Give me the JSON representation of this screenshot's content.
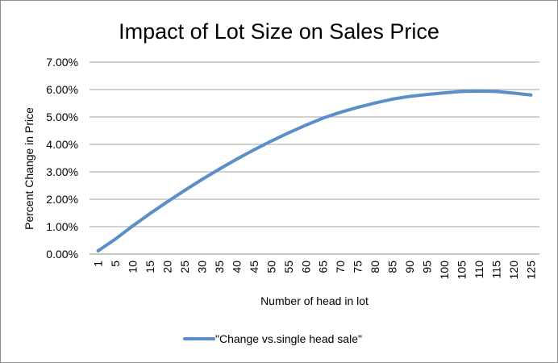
{
  "chart_data": {
    "type": "line",
    "title": "Impact of Lot Size on Sales Price",
    "xlabel": "Number of head in lot",
    "ylabel": "Percent Change in Price",
    "ylim": [
      0,
      0.07
    ],
    "y_ticks": [
      "0.00%",
      "1.00%",
      "2.00%",
      "3.00%",
      "4.00%",
      "5.00%",
      "6.00%",
      "7.00%"
    ],
    "categories": [
      "1",
      "5",
      "10",
      "15",
      "20",
      "25",
      "30",
      "35",
      "40",
      "45",
      "50",
      "55",
      "60",
      "65",
      "70",
      "75",
      "80",
      "85",
      "90",
      "95",
      "100",
      "105",
      "110",
      "115",
      "120",
      "125"
    ],
    "grid": true,
    "legend_position": "bottom",
    "series": [
      {
        "name": "\"Change vs.single head sale\"",
        "color": "#5b8fc9",
        "values": [
          0.0012,
          0.0055,
          0.0103,
          0.0148,
          0.0191,
          0.0232,
          0.0272,
          0.031,
          0.0346,
          0.038,
          0.0412,
          0.0442,
          0.047,
          0.0496,
          0.0517,
          0.0535,
          0.0551,
          0.0565,
          0.0575,
          0.0582,
          0.0588,
          0.0593,
          0.0594,
          0.0593,
          0.0587,
          0.058
        ]
      }
    ]
  }
}
